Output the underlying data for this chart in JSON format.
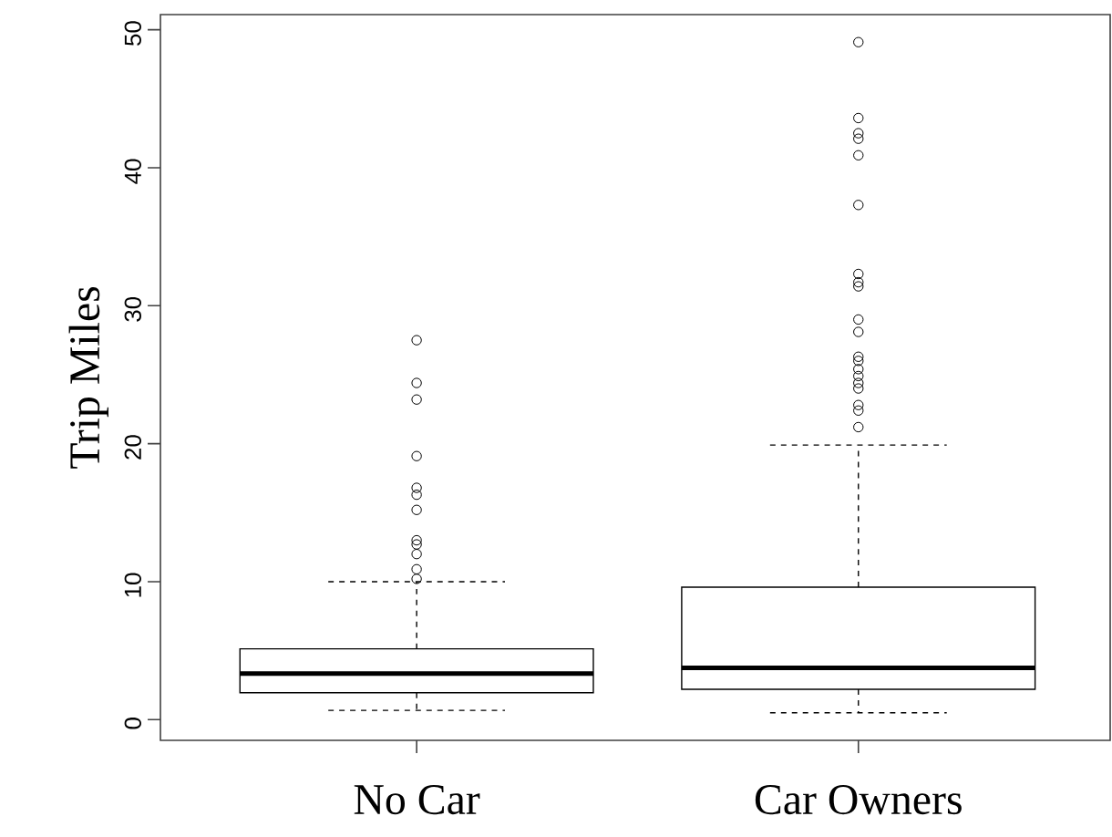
{
  "chart_data": {
    "type": "box",
    "ylabel": "Trip  Miles",
    "categories": [
      "No  Car",
      "Car Owners"
    ],
    "boxes": [
      {
        "low": 0.67,
        "q1": 1.95,
        "median": 3.34,
        "q3": 5.13,
        "high": 10.0,
        "outliers": [
          27.5,
          24.4,
          23.2,
          19.1,
          16.8,
          16.3,
          15.2,
          13.0,
          12.7,
          12.0,
          10.9,
          10.2
        ]
      },
      {
        "low": 0.5,
        "q1": 2.2,
        "median": 3.75,
        "q3": 9.6,
        "high": 19.9,
        "outliers": [
          49.1,
          43.6,
          42.5,
          42.1,
          40.9,
          37.3,
          32.3,
          31.7,
          31.4,
          29.0,
          28.1,
          26.3,
          26.0,
          25.4,
          24.9,
          24.4,
          24.0,
          22.8,
          22.4,
          21.2
        ]
      }
    ],
    "ylim": [
      -1.5,
      51.1
    ],
    "yticks": [
      0,
      10,
      20,
      30,
      40,
      50
    ],
    "color": "#000000",
    "marker": "circle"
  }
}
